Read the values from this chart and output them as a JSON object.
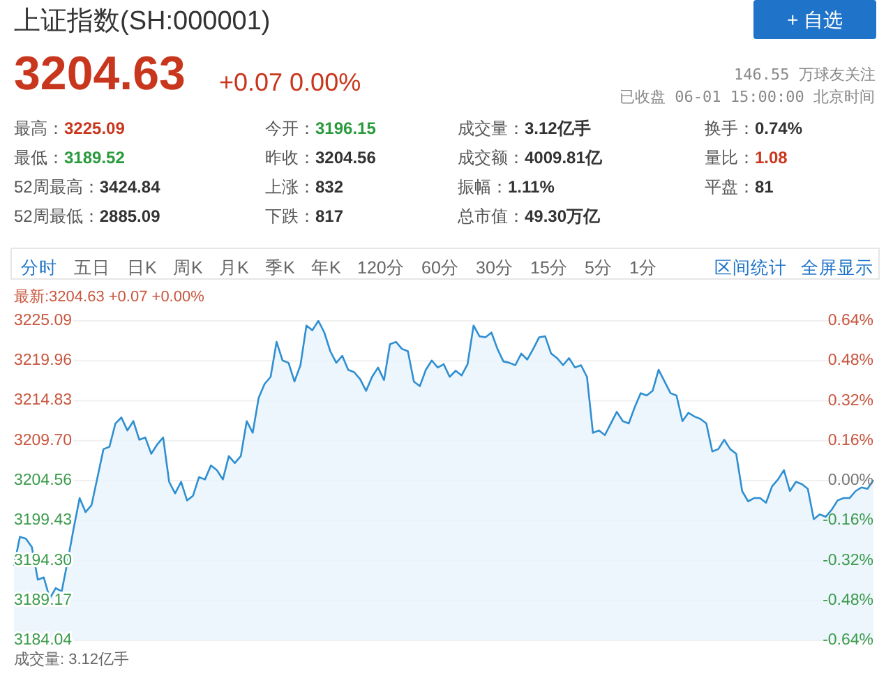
{
  "chart_data": [
    {
      "type": "other",
      "title": "上证指数(SH:000001)",
      "annotations": [
        "3204.63",
        "+0.07 0.00%",
        "146.55 万球友关注",
        "已收盘 06-01 15:00:00 北京时间",
        "+ 自选",
        "最高：3225.09",
        "今开：3196.15",
        "成交量：3.12亿手",
        "换手：0.74%",
        "最低：3189.52",
        "昨收：3204.56",
        "成交额：4009.81亿",
        "量比：1.08",
        "52周最高：3424.84",
        "上涨：832",
        "振幅：1.11%",
        "平盘：81",
        "52周最低：2885.09",
        "下跌：817",
        "总市值：49.30万亿",
        "分时",
        "五日",
        "日K",
        "周K",
        "月K",
        "季K",
        "年K",
        "120分",
        "60分",
        "30分",
        "15分",
        "5分",
        "1分",
        "区间统计",
        "全屏显示"
      ]
    },
    {
      "type": "area",
      "subtitle": "最新:3204.63 +0.07 +0.00%",
      "annotations": [
        "成交量: 3.12亿手"
      ],
      "grid": "y",
      "categories": [
        null,
        null,
        null,
        null,
        null,
        null,
        null,
        null,
        null,
        null,
        null,
        null,
        null,
        null,
        null,
        null,
        null,
        null,
        null,
        null,
        null,
        null,
        null,
        null,
        null,
        null,
        null,
        null,
        null,
        null,
        null,
        null,
        null,
        null,
        null,
        null,
        null,
        null,
        null,
        null,
        null,
        null,
        null,
        null,
        null,
        null,
        null,
        null,
        null,
        null,
        null,
        null,
        null,
        null,
        null,
        null,
        null,
        null,
        null,
        null,
        null,
        null,
        null,
        null,
        null,
        null,
        null,
        null,
        null,
        null,
        null,
        null,
        null,
        null,
        null,
        null,
        null,
        null,
        null,
        null,
        null,
        null,
        null,
        null,
        null,
        null,
        null,
        null,
        null,
        null,
        null,
        null,
        null,
        null,
        null,
        null,
        null,
        null,
        null,
        null,
        null,
        null,
        null,
        null,
        null,
        null,
        null,
        null,
        null,
        null,
        null,
        null,
        null,
        null,
        null,
        null,
        null,
        null,
        null,
        null,
        null,
        null,
        null,
        null,
        null,
        null,
        null,
        null,
        null,
        null,
        null,
        null,
        null,
        null,
        null,
        null,
        null,
        null,
        null,
        null,
        null,
        null,
        null,
        null,
        null
      ],
      "series": [
        {
          "color": "#2f8fd1",
          "values": [
            3193.63,
            3197.34,
            3197.1,
            3196.02,
            3191.83,
            3192.13,
            3189.43,
            3190.75,
            3190.33,
            3194.23,
            3198.42,
            3202.32,
            3200.52,
            3201.42,
            3205.01,
            3208.61,
            3208.91,
            3211.91,
            3212.68,
            3211.01,
            3212.21,
            3209.81,
            3210.11,
            3208.01,
            3209.21,
            3210.11,
            3204.41,
            3202.92,
            3204.41,
            3202.02,
            3202.62,
            3205.01,
            3204.71,
            3206.51,
            3205.91,
            3204.71,
            3207.71,
            3206.81,
            3207.71,
            3212.21,
            3210.71,
            3215.2,
            3217.0,
            3217.9,
            3222.39,
            3220.0,
            3219.7,
            3217.3,
            3219.4,
            3224.49,
            3223.89,
            3225.09,
            3223.59,
            3221.19,
            3219.7,
            3220.6,
            3218.8,
            3218.5,
            3217.6,
            3216.1,
            3217.9,
            3219.1,
            3217.48,
            3222.09,
            3222.39,
            3221.49,
            3221.19,
            3217.3,
            3216.7,
            3218.8,
            3220.0,
            3219.1,
            3219.52,
            3217.9,
            3218.68,
            3218.08,
            3219.52,
            3224.49,
            3223.11,
            3222.99,
            3223.59,
            3221.49,
            3219.88,
            3219.7,
            3219.4,
            3220.89,
            3220.12,
            3221.49,
            3222.99,
            3223.11,
            3220.89,
            3220.3,
            3219.4,
            3220.3,
            3219.1,
            3219.4,
            3217.9,
            3210.71,
            3211.01,
            3210.41,
            3211.91,
            3213.4,
            3212.21,
            3211.91,
            3214.0,
            3215.8,
            3215.5,
            3216.1,
            3218.8,
            3217.3,
            3215.8,
            3215.5,
            3212.21,
            3213.28,
            3212.8,
            3212.5,
            3211.91,
            3208.31,
            3208.61,
            3209.81,
            3208.61,
            3208.01,
            3203.22,
            3201.9,
            3202.32,
            3202.32,
            3201.72,
            3203.81,
            3204.71,
            3205.91,
            3203.22,
            3204.41,
            3204.11,
            3203.52,
            3199.62,
            3200.22,
            3199.92,
            3200.82,
            3202.02,
            3202.32,
            3202.32,
            3203.22,
            3203.69,
            3203.52,
            3204.63
          ]
        }
      ],
      "ylim": [
        3184.04,
        3225.09
      ],
      "yticks": [
        3225.09,
        3219.96,
        3214.83,
        {
          "value": 3209.7,
          "label": "3209.70"
        },
        3204.56,
        3199.43,
        {
          "value": 3194.3,
          "label": "3194.30"
        },
        3189.17,
        3184.04
      ],
      "y2lim": [
        -0.64,
        0.64
      ],
      "y2ticks": [
        {
          "value": 0.64,
          "label": "0.64%"
        },
        {
          "value": 0.48,
          "label": "0.48%"
        },
        {
          "value": 0.32,
          "label": "0.32%"
        },
        {
          "value": 0.16,
          "label": "0.16%"
        },
        {
          "value": 0,
          "label": "0.00%"
        },
        {
          "value": -0.16,
          "label": "-0.16%"
        },
        {
          "value": -0.32,
          "label": "-0.32%"
        },
        {
          "value": -0.48,
          "label": "-0.48%"
        },
        {
          "value": -0.64,
          "label": "-0.64%"
        }
      ]
    }
  ]
}
